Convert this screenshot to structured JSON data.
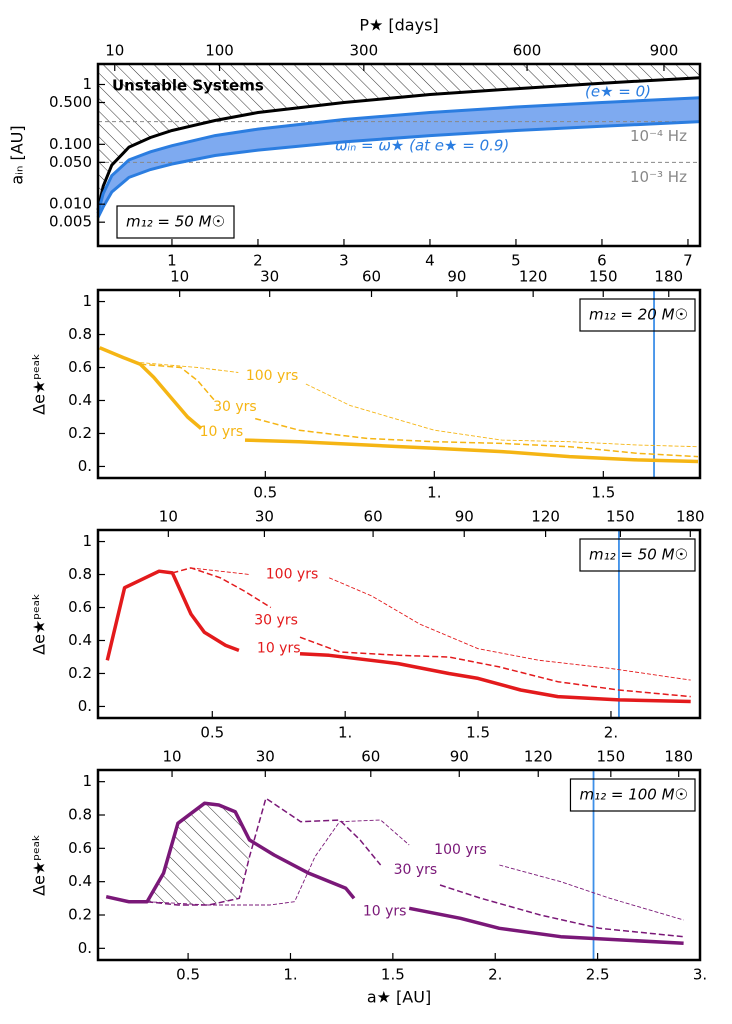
{
  "chart_data": [
    {
      "type": "line",
      "yscale": "log",
      "x2label": "P★ [days]",
      "ylabel": "aᵢₙ [AU]",
      "m12": 50,
      "mass_label": "m₁₂ = 50 M☉",
      "annotations": [
        "Unstable Systems",
        "(e★ = 0)",
        "ωᵢₙ = ω★ (at e★ = 0.9)"
      ],
      "x": [
        0.14,
        0.2,
        0.3,
        0.5,
        0.75,
        1,
        1.5,
        2,
        3,
        4,
        5,
        6,
        7.14
      ],
      "series": [
        {
          "color": "#000000",
          "values": [
            0.008,
            0.02,
            0.045,
            0.09,
            0.13,
            0.17,
            0.25,
            0.34,
            0.5,
            0.68,
            0.85,
            1.05,
            1.3
          ]
        },
        {
          "color": "#2b7de0",
          "values": [
            0.007,
            0.015,
            0.03,
            0.055,
            0.075,
            0.095,
            0.14,
            0.18,
            0.26,
            0.34,
            0.42,
            0.5,
            0.6
          ]
        },
        {
          "color": "#2b7de0",
          "values": [
            0.006,
            0.009,
            0.016,
            0.028,
            0.038,
            0.047,
            0.065,
            0.08,
            0.11,
            0.14,
            0.17,
            0.2,
            0.24
          ]
        }
      ],
      "band_color": "#7eaaf0",
      "hlines": [
        {
          "value": 0.24,
          "label": "10⁻⁴ Hz"
        },
        {
          "value": 0.05,
          "label": "10⁻³ Hz"
        }
      ],
      "xlim": [
        0.14,
        7.14
      ],
      "xticks": [
        1,
        2,
        3,
        4,
        5,
        6,
        7
      ],
      "x2ticks": [
        10,
        100,
        300,
        600,
        900
      ],
      "ylim": [
        0.002,
        2.2
      ],
      "yticks": [
        0.005,
        {
          "value": 0.01,
          "label": "0.010"
        },
        {
          "value": 0.05,
          "label": "0.050"
        },
        {
          "value": 0.1,
          "label": "0.100"
        },
        {
          "value": 0.5,
          "label": "0.500"
        },
        1
      ]
    },
    {
      "type": "line",
      "ylabel": "Δe★ᵖᵉᵃᵏ",
      "m12": 20,
      "mass_label": "m₁₂ = 20 M☉",
      "vline": 1.65,
      "vline_color": "#3d8fe8",
      "series": [
        {
          "name": "10 yrs",
          "color": "#f5b514",
          "x": [
            0.01,
            0.08,
            0.13,
            0.17,
            0.22,
            0.27,
            0.31,
            0.37,
            0.44,
            0.6,
            0.8,
            1.0,
            1.2,
            1.4,
            1.6,
            1.78
          ],
          "values": [
            0.72,
            0.66,
            0.62,
            0.54,
            0.42,
            0.3,
            0.23,
            null,
            0.16,
            0.15,
            0.13,
            0.11,
            0.09,
            0.06,
            0.04,
            0.03
          ]
        },
        {
          "name": "30 yrs",
          "color": "#f5b514",
          "x": [
            0.13,
            0.25,
            0.3,
            0.35,
            0.41,
            0.47,
            0.6,
            0.8,
            1.0,
            1.2,
            1.4,
            1.6,
            1.78
          ],
          "values": [
            0.62,
            0.6,
            0.52,
            0.4,
            null,
            0.29,
            0.22,
            0.17,
            0.15,
            0.14,
            0.12,
            0.08,
            0.06
          ]
        },
        {
          "name": "100 yrs",
          "color": "#f5b514",
          "x": [
            0.13,
            0.3,
            0.42,
            0.52,
            0.62,
            0.75,
            0.9,
            1.0,
            1.2,
            1.4,
            1.6,
            1.78
          ],
          "values": [
            0.63,
            0.6,
            0.57,
            null,
            0.5,
            0.37,
            0.28,
            0.22,
            0.16,
            0.15,
            0.13,
            0.12
          ]
        }
      ],
      "xlim": [
        0.005,
        1.786
      ],
      "xticks": [
        0.5,
        {
          "value": 1,
          "label": "1."
        },
        1.5
      ],
      "x2ticks": [
        10,
        30,
        60,
        90,
        120,
        150,
        180
      ],
      "ylim": [
        -0.07,
        1.07
      ],
      "yticks": [
        {
          "value": 0,
          "label": "0."
        },
        0.2,
        0.4,
        0.6,
        0.8,
        1
      ]
    },
    {
      "type": "line",
      "ylabel": "Δe★ᵖᵉᵃᵏ",
      "m12": 50,
      "mass_label": "m₁₂ = 50 M☉",
      "vline": 2.03,
      "vline_color": "#3d8fe8",
      "series": [
        {
          "name": "10 yrs",
          "color": "#e31a1c",
          "x": [
            0.105,
            0.17,
            0.3,
            0.35,
            0.42,
            0.47,
            0.55,
            0.6,
            0.72,
            0.83,
            0.94,
            1.2,
            1.39,
            1.5,
            1.66,
            1.8,
            2.03,
            2.3
          ],
          "values": [
            0.28,
            0.72,
            0.82,
            0.81,
            0.56,
            0.45,
            0.37,
            0.34,
            null,
            0.32,
            0.31,
            0.26,
            0.2,
            0.17,
            0.1,
            0.06,
            0.04,
            0.03
          ]
        },
        {
          "name": "30 yrs",
          "color": "#e31a1c",
          "x": [
            0.35,
            0.42,
            0.53,
            0.62,
            0.72,
            0.78,
            0.83,
            0.98,
            1.2,
            1.39,
            1.58,
            1.8,
            2.03,
            2.3
          ],
          "values": [
            0.81,
            0.84,
            0.78,
            0.7,
            0.6,
            null,
            0.42,
            0.33,
            0.31,
            0.3,
            0.24,
            0.15,
            0.1,
            0.06
          ]
        },
        {
          "name": "100 yrs",
          "color": "#e31a1c",
          "x": [
            0.42,
            0.64,
            0.8,
            0.94,
            1.1,
            1.28,
            1.5,
            1.73,
            2.0,
            2.3
          ],
          "values": [
            0.84,
            0.8,
            null,
            0.78,
            0.67,
            0.5,
            0.35,
            0.28,
            0.23,
            0.16
          ]
        }
      ],
      "xlim": [
        0.07,
        2.335
      ],
      "xticks": [
        0.5,
        {
          "value": 1,
          "label": "1."
        },
        1.5,
        {
          "value": 2,
          "label": "2."
        }
      ],
      "x2ticks": [
        10,
        30,
        60,
        90,
        120,
        150,
        180
      ],
      "ylim": [
        -0.07,
        1.07
      ],
      "yticks": [
        {
          "value": 0,
          "label": "0."
        },
        0.2,
        0.4,
        0.6,
        0.8,
        1
      ]
    },
    {
      "type": "line",
      "ylabel": "Δe★ᵖᵉᵃᵏ",
      "xlabel": "a★ [AU]",
      "m12": 100,
      "mass_label": "m₁₂ = 100 M☉",
      "vline": 2.48,
      "vline_color": "#3d8fe8",
      "series": [
        {
          "name": "10 yrs",
          "color": "#7a1878",
          "x": [
            0.1,
            0.21,
            0.3,
            0.38,
            0.45,
            0.58,
            0.65,
            0.73,
            0.8,
            0.92,
            1.09,
            1.27,
            1.31,
            1.45,
            1.58,
            1.83,
            2.02,
            2.32,
            2.92
          ],
          "values": [
            0.31,
            0.28,
            0.28,
            0.45,
            0.75,
            0.87,
            0.86,
            0.82,
            0.65,
            0.56,
            0.45,
            0.36,
            0.3,
            null,
            0.24,
            0.18,
            0.12,
            0.07,
            0.03
          ]
        },
        {
          "name": "30 yrs",
          "color": "#7a1878",
          "x": [
            0.3,
            0.45,
            0.6,
            0.75,
            0.8,
            0.88,
            1.05,
            1.24,
            1.34,
            1.44,
            1.6,
            1.73,
            1.93,
            2.22,
            2.51,
            2.92
          ],
          "values": [
            0.28,
            0.26,
            0.26,
            0.3,
            0.55,
            0.9,
            0.76,
            0.77,
            0.65,
            0.5,
            null,
            0.38,
            0.3,
            0.2,
            0.12,
            0.07
          ]
        },
        {
          "name": "100 yrs",
          "color": "#7a1878",
          "x": [
            0.3,
            0.6,
            0.9,
            1.02,
            1.12,
            1.24,
            1.44,
            1.58,
            1.8,
            2.02,
            2.32,
            2.56,
            2.92
          ],
          "values": [
            0.28,
            0.26,
            0.26,
            0.28,
            0.55,
            0.76,
            0.77,
            0.62,
            null,
            0.5,
            0.4,
            0.3,
            0.17
          ]
        }
      ],
      "xlim": [
        0.06,
        3.0
      ],
      "xticks": [
        0.5,
        {
          "value": 1,
          "label": "1."
        },
        1.5,
        {
          "value": 2,
          "label": "2."
        },
        2.5,
        {
          "value": 3,
          "label": "3."
        }
      ],
      "x2ticks": [
        10,
        30,
        60,
        90,
        120,
        150,
        180
      ],
      "ylim": [
        -0.07,
        1.07
      ],
      "yticks": [
        {
          "value": 0,
          "label": "0."
        },
        0.2,
        0.4,
        0.6,
        0.8,
        1
      ]
    }
  ]
}
